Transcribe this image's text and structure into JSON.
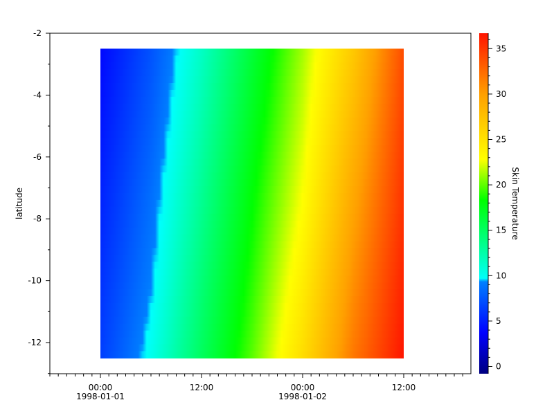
{
  "chart_data": {
    "type": "heatmap",
    "title": "",
    "xlabel": "",
    "ylabel": "latitude",
    "colorbar_label": "Skin Temperature",
    "x_hours_from_1998-01-01T00:00": [
      0,
      6,
      12,
      18,
      24,
      30,
      36
    ],
    "x_dates": [
      "1998-01-01 00:00",
      "1998-01-01 06:00",
      "1998-01-01 12:00",
      "1998-01-01 18:00",
      "1998-01-02 00:00",
      "1998-01-02 06:00",
      "1998-01-02 12:00"
    ],
    "y": [
      -2.5,
      -5,
      -7.5,
      -10,
      -12.5
    ],
    "z": [
      [
        4.0,
        7.3,
        11.5,
        16.4,
        21.2,
        26.9,
        34.0
      ],
      [
        4.6,
        7.9,
        12.4,
        17.3,
        22.0,
        28.2,
        34.7
      ],
      [
        5.2,
        8.6,
        13.3,
        18.2,
        22.9,
        29.5,
        35.3
      ],
      [
        5.8,
        9.2,
        14.2,
        19.0,
        24.1,
        30.7,
        36.0
      ],
      [
        6.4,
        10.1,
        15.1,
        19.9,
        25.4,
        31.9,
        36.7
      ]
    ],
    "xlim": [
      "1997-12-31 18:00",
      "1998-01-02 20:00"
    ],
    "ylim": [
      -13,
      -2
    ],
    "clim": [
      -0.8,
      36.7
    ],
    "colormap": "jet",
    "grid": false,
    "x_ticks": [
      {
        "time": "00:00",
        "date": "1998-01-01"
      },
      {
        "time": "12:00",
        "date": ""
      },
      {
        "time": "00:00",
        "date": "1998-01-02"
      },
      {
        "time": "12:00",
        "date": ""
      }
    ],
    "y_ticks": [
      "-2",
      "-4",
      "-6",
      "-8",
      "-10",
      "-12"
    ],
    "colorbar_ticks": [
      "0",
      "5",
      "10",
      "15",
      "20",
      "25",
      "30",
      "35"
    ]
  }
}
